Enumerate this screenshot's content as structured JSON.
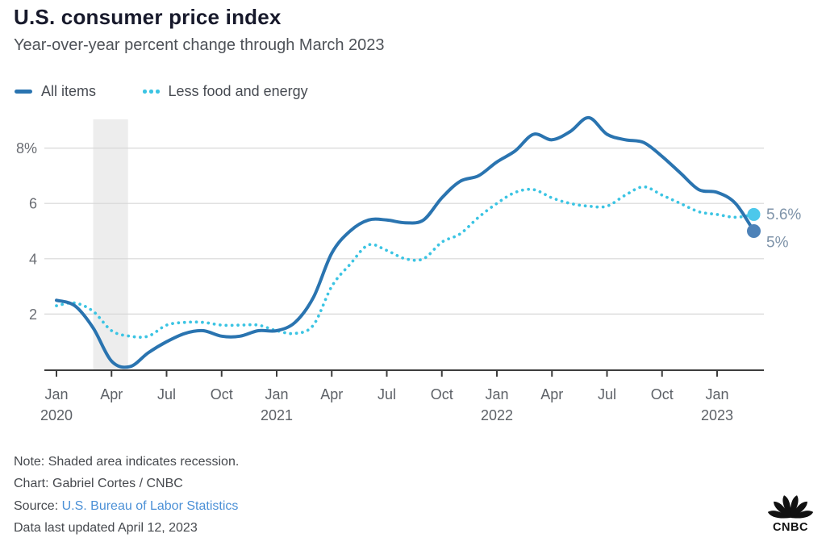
{
  "header": {
    "title": "U.S. consumer price index",
    "subtitle": "Year-over-year percent change through March 2023"
  },
  "legend": {
    "items": [
      {
        "label": "All items",
        "style": "solid",
        "color": "#2a74b0"
      },
      {
        "label": "Less food and energy",
        "style": "dotted",
        "color": "#3bc4e3"
      }
    ]
  },
  "chart_data": {
    "type": "line",
    "title": "U.S. consumer price index",
    "subtitle": "Year-over-year percent change through March 2023",
    "x_start": "2020-01",
    "x_end": "2023-03",
    "x_interval": "monthly",
    "ylim": [
      0,
      9.3
    ],
    "grid": true,
    "legend_position": "top-left",
    "series": [
      {
        "name": "All items",
        "style": "solid",
        "color": "#2a74b0",
        "values": [
          2.5,
          2.3,
          1.5,
          0.3,
          0.1,
          0.6,
          1.0,
          1.3,
          1.4,
          1.2,
          1.2,
          1.4,
          1.4,
          1.7,
          2.6,
          4.2,
          5.0,
          5.4,
          5.4,
          5.3,
          5.4,
          6.2,
          6.8,
          7.0,
          7.5,
          7.9,
          8.5,
          8.3,
          8.6,
          9.1,
          8.5,
          8.3,
          8.2,
          7.7,
          7.1,
          6.5,
          6.4,
          6.0,
          5.0
        ]
      },
      {
        "name": "Less food and energy",
        "style": "dotted",
        "color": "#3bc4e3",
        "values": [
          2.3,
          2.4,
          2.1,
          1.4,
          1.2,
          1.2,
          1.6,
          1.7,
          1.7,
          1.6,
          1.6,
          1.6,
          1.4,
          1.3,
          1.6,
          3.0,
          3.8,
          4.5,
          4.3,
          4.0,
          4.0,
          4.6,
          4.9,
          5.5,
          6.0,
          6.4,
          6.5,
          6.2,
          6.0,
          5.9,
          5.9,
          6.3,
          6.6,
          6.3,
          6.0,
          5.7,
          5.6,
          5.5,
          5.6
        ]
      }
    ],
    "y_ticks": [
      {
        "value": 2,
        "label": "2"
      },
      {
        "value": 4,
        "label": "4"
      },
      {
        "value": 6,
        "label": "6"
      },
      {
        "value": 8,
        "label": "8%"
      }
    ],
    "x_ticks": [
      {
        "month_index": 0,
        "label": "Jan",
        "year": "2020"
      },
      {
        "month_index": 3,
        "label": "Apr"
      },
      {
        "month_index": 6,
        "label": "Jul"
      },
      {
        "month_index": 9,
        "label": "Oct"
      },
      {
        "month_index": 12,
        "label": "Jan",
        "year": "2021"
      },
      {
        "month_index": 15,
        "label": "Apr"
      },
      {
        "month_index": 18,
        "label": "Jul"
      },
      {
        "month_index": 21,
        "label": "Oct"
      },
      {
        "month_index": 24,
        "label": "Jan",
        "year": "2022"
      },
      {
        "month_index": 27,
        "label": "Apr"
      },
      {
        "month_index": 30,
        "label": "Jul"
      },
      {
        "month_index": 33,
        "label": "Oct"
      },
      {
        "month_index": 36,
        "label": "Jan",
        "year": "2023"
      }
    ],
    "recession_band": {
      "from_month_index": 2,
      "to_month_index": 3.9,
      "color": "#ededed"
    },
    "end_labels": [
      {
        "series": "Less food and energy",
        "text": "5.6%",
        "value": 5.6,
        "dot_color": "#4cc8eb",
        "dot_r": 8,
        "dy": 6
      },
      {
        "series": "All items",
        "text": "5%",
        "value": 5.0,
        "dot_color": "#4d82b8",
        "dot_r": 8.5,
        "dy": 20
      }
    ],
    "colors": {
      "gridline": "#d7d7d7",
      "axis": "#3d3d3d",
      "tick_label": "#5d6167",
      "end_label": "#7e93a9"
    }
  },
  "footer": {
    "note": "Note: Shaded area indicates recession.",
    "credit": "Chart: Gabriel Cortes / CNBC",
    "source_label": "Source:",
    "source_link": "U.S. Bureau of Labor Statistics",
    "updated": "Data last updated April 12, 2023",
    "link_color": "#4b90d6"
  },
  "logo": {
    "name": "CNBC",
    "wordmark": "CNBC",
    "color": "#111111"
  }
}
